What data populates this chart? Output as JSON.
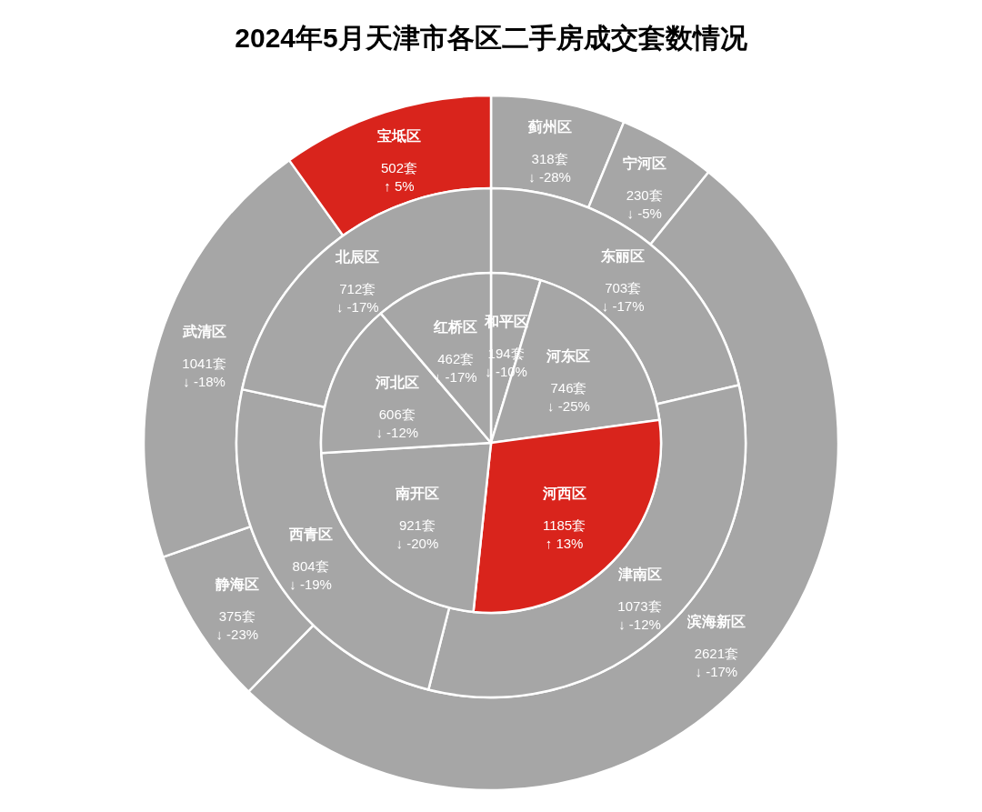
{
  "chart_data": [
    {
      "type": "donut",
      "title": "2024年5月天津市各区二手房成交套数情况",
      "categories": [
        "蓟州区",
        "宁河区",
        "滨海新区",
        "静海区",
        "武清区",
        "宝坻区"
      ],
      "values": [
        318,
        230,
        2621,
        375,
        1041,
        502
      ],
      "colors": [
        "#a6a6a6",
        "#a6a6a6",
        "#a6a6a6",
        "#a6a6a6",
        "#a6a6a6",
        "#d9241c"
      ],
      "value_labels": [
        "318套\n↓ -28%",
        "230套\n↓ -5%",
        "2621套\n↓ -17%",
        "375套\n↓ -23%",
        "1041套\n↓ -18%",
        "502套\n↑ 5%"
      ]
    },
    {
      "type": "donut",
      "categories": [
        "东丽区",
        "津南区",
        "西青区",
        "北辰区"
      ],
      "values": [
        703,
        1073,
        804,
        712
      ],
      "colors": [
        "#a6a6a6",
        "#a6a6a6",
        "#a6a6a6",
        "#a6a6a6"
      ],
      "value_labels": [
        "703套\n↓ -17%",
        "1073套\n↓ -12%",
        "804套\n↓ -19%",
        "712套\n↓ -17%"
      ]
    },
    {
      "type": "pie",
      "categories": [
        "和平区",
        "河东区",
        "河西区",
        "南开区",
        "河北区",
        "红桥区"
      ],
      "values": [
        194,
        746,
        1185,
        921,
        606,
        462
      ],
      "colors": [
        "#a6a6a6",
        "#a6a6a6",
        "#d9241c",
        "#a6a6a6",
        "#a6a6a6",
        "#a6a6a6"
      ],
      "value_labels": [
        "194套\n↓ -10%",
        "746套\n↓ -25%",
        "1185套\n↑ 13%",
        "921套\n↓ -20%",
        "606套\n↓ -12%",
        "462套\n↓ -17%"
      ]
    }
  ]
}
